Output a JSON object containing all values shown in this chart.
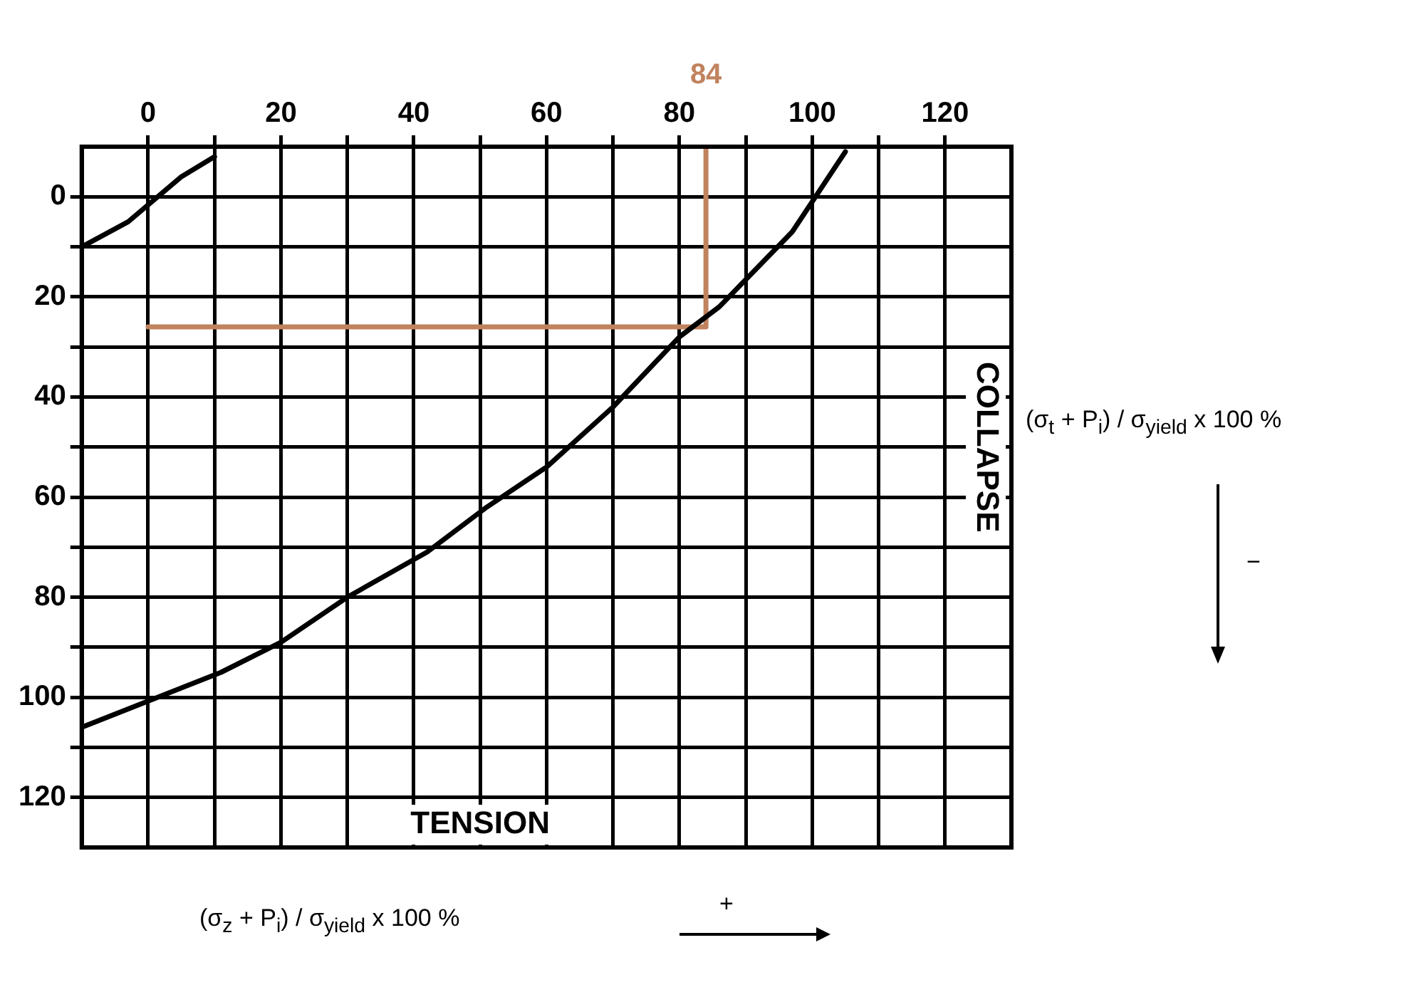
{
  "chart_data": {
    "type": "line",
    "xlabel": "TENSION",
    "ylabel": "COLLAPSE",
    "xlim": [
      -10,
      130
    ],
    "ylim": [
      130,
      -10
    ],
    "xticks": [
      0,
      {
        "value": 10,
        "label": null
      },
      20,
      {
        "value": 30,
        "label": null
      },
      40,
      {
        "value": 50,
        "label": null
      },
      60,
      {
        "value": 70,
        "label": null
      },
      80,
      {
        "value": 90,
        "label": null
      },
      100,
      {
        "value": 110,
        "label": null
      },
      120
    ],
    "yticks": [
      0,
      {
        "value": 10,
        "label": null
      },
      20,
      {
        "value": 30,
        "label": null
      },
      40,
      {
        "value": 50,
        "label": null
      },
      60,
      {
        "value": 70,
        "label": null
      },
      80,
      {
        "value": 90,
        "label": null
      },
      100,
      {
        "value": 110,
        "label": null
      },
      120
    ],
    "grid": true,
    "legend": false,
    "marker": "none",
    "line_style": "solid",
    "series": [
      {
        "color": "#000000",
        "x": [
          -10,
          11,
          20,
          30,
          42,
          51,
          60,
          70,
          80,
          86,
          97,
          105
        ],
        "values": [
          106,
          95,
          89,
          80,
          71,
          62,
          54,
          42,
          28,
          22,
          7,
          -9
        ]
      },
      {
        "color": "#000000",
        "x": [
          -10,
          -3,
          5,
          10
        ],
        "values": [
          10,
          5,
          -4,
          -8
        ]
      },
      {
        "color": "#c0835e",
        "x": [
          0,
          84,
          84
        ],
        "values": [
          26,
          26,
          -10
        ]
      }
    ],
    "annotations": [
      {
        "text": "84",
        "x": 84,
        "y": -10
      },
      "(σ$_{z}$ + P$_{i}$) / σ$_{yield}$ x 100 %",
      "+",
      "(σ$_{t}$ + P$_{i}$) / σ$_{yield}$ x 100 %",
      "−"
    ]
  }
}
